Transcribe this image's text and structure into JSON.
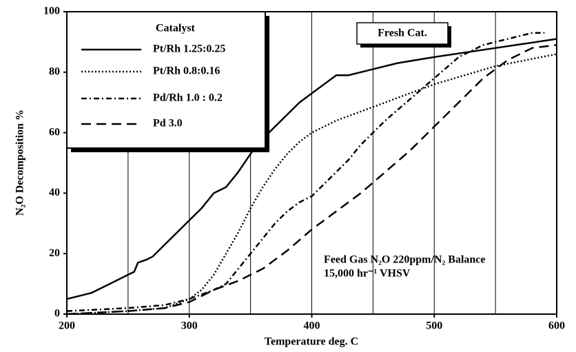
{
  "chart_data": {
    "type": "line",
    "x_label": "Temperature deg. C",
    "y_label": "N₂O Decomposition %",
    "title": "Fresh Cat.",
    "legend_title": "Catalyst",
    "annotations": [
      "Feed Gas N₂O 220ppm/N₂ Balance",
      "15,000 hr⁻¹ VHSV"
    ],
    "xlim": [
      200,
      600
    ],
    "xticks": [
      200,
      300,
      400,
      500,
      600
    ],
    "ylim": [
      0,
      100
    ],
    "yticks": [
      0,
      20,
      40,
      60,
      80,
      100
    ],
    "xgrid": [
      250,
      300,
      350,
      400,
      450,
      500,
      550
    ],
    "legend": "upper left",
    "series": [
      {
        "name": "Pt/Rh  1.25:0.25",
        "color": "#000000",
        "style": "solid",
        "x": [
          200,
          220,
          240,
          250,
          255,
          258,
          265,
          270,
          280,
          290,
          300,
          310,
          320,
          330,
          340,
          350,
          360,
          370,
          380,
          390,
          400,
          410,
          420,
          430,
          440,
          450,
          470,
          500,
          550,
          600
        ],
        "values": [
          5,
          7,
          11,
          13,
          14,
          17,
          18,
          19,
          23,
          27,
          31,
          35,
          40,
          42,
          47,
          53,
          58,
          62,
          66,
          70,
          73,
          76,
          79,
          79,
          80,
          81,
          83,
          85,
          88,
          91
        ]
      },
      {
        "name": "Pt/Rh  0.8:0.16",
        "color": "#000000",
        "style": "dotted",
        "x": [
          200,
          250,
          280,
          300,
          310,
          320,
          330,
          340,
          350,
          360,
          370,
          380,
          390,
          400,
          420,
          440,
          460,
          480,
          500,
          550,
          600
        ],
        "values": [
          0,
          1,
          2,
          5,
          8,
          13,
          20,
          27,
          35,
          42,
          48,
          53,
          57,
          60,
          64,
          67,
          70,
          73,
          76,
          82,
          86
        ]
      },
      {
        "name": "Pd/Rh 1.0 : 0.2",
        "color": "#000000",
        "style": "dashdot",
        "x": [
          200,
          250,
          280,
          300,
          320,
          330,
          340,
          350,
          360,
          370,
          380,
          390,
          400,
          410,
          420,
          430,
          440,
          460,
          480,
          500,
          520,
          540,
          560,
          580,
          590
        ],
        "values": [
          1,
          2,
          3,
          5,
          8,
          10,
          15,
          20,
          25,
          30,
          34,
          37,
          39,
          43,
          47,
          51,
          56,
          64,
          71,
          78,
          85,
          89,
          91,
          93,
          93
        ]
      },
      {
        "name": "Pd        3.0",
        "color": "#000000",
        "style": "dashed",
        "x": [
          200,
          250,
          280,
          300,
          320,
          340,
          360,
          380,
          400,
          420,
          440,
          460,
          480,
          500,
          520,
          540,
          560,
          580,
          600
        ],
        "values": [
          0,
          1,
          2,
          4,
          8,
          11,
          15,
          21,
          28,
          34,
          40,
          47,
          54,
          62,
          70,
          78,
          84,
          88,
          89
        ]
      }
    ]
  }
}
